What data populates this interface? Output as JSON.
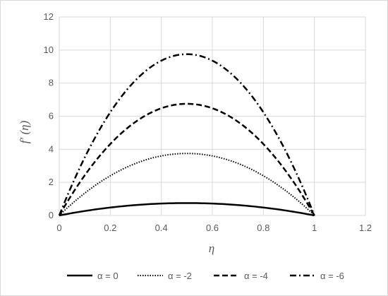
{
  "chart_data": {
    "type": "line",
    "title": "",
    "xlabel": "η",
    "ylabel": "f′ (η)",
    "xlim": [
      0,
      1.2
    ],
    "ylim": [
      0,
      12
    ],
    "xticks": [
      "0",
      "0.2",
      "0.4",
      "0.6",
      "0.8",
      "1",
      "1.2"
    ],
    "yticks": [
      "0",
      "2",
      "4",
      "6",
      "8",
      "10",
      "12"
    ],
    "grid": true,
    "legend_position": "bottom",
    "series": [
      {
        "name": "α = 0",
        "peak": 0.75,
        "x": [
          0,
          0.1,
          0.2,
          0.3,
          0.4,
          0.5,
          0.6,
          0.7,
          0.8,
          0.9,
          1
        ],
        "y": [
          0,
          0.27,
          0.48,
          0.63,
          0.72,
          0.75,
          0.72,
          0.63,
          0.48,
          0.27,
          0
        ]
      },
      {
        "name": "α = -2",
        "peak": 3.75,
        "x": [
          0,
          0.1,
          0.2,
          0.3,
          0.4,
          0.5,
          0.6,
          0.7,
          0.8,
          0.9,
          1
        ],
        "y": [
          0,
          1.35,
          2.4,
          3.15,
          3.6,
          3.75,
          3.6,
          3.15,
          2.4,
          1.35,
          0
        ]
      },
      {
        "name": "α = -4",
        "peak": 6.75,
        "x": [
          0,
          0.1,
          0.2,
          0.3,
          0.4,
          0.5,
          0.6,
          0.7,
          0.8,
          0.9,
          1
        ],
        "y": [
          0,
          2.43,
          4.32,
          5.67,
          6.48,
          6.75,
          6.48,
          5.67,
          4.32,
          2.43,
          0
        ]
      },
      {
        "name": "α = -6",
        "peak": 9.75,
        "x": [
          0,
          0.1,
          0.2,
          0.3,
          0.4,
          0.5,
          0.6,
          0.7,
          0.8,
          0.9,
          1
        ],
        "y": [
          0,
          3.51,
          6.24,
          8.19,
          9.36,
          9.75,
          9.36,
          8.19,
          6.24,
          3.51,
          0
        ]
      }
    ],
    "line_styles": [
      "solid",
      "dotted",
      "dashed",
      "dash-dot"
    ],
    "line_color": "#000000",
    "grid_color": "#d9d9d9"
  }
}
